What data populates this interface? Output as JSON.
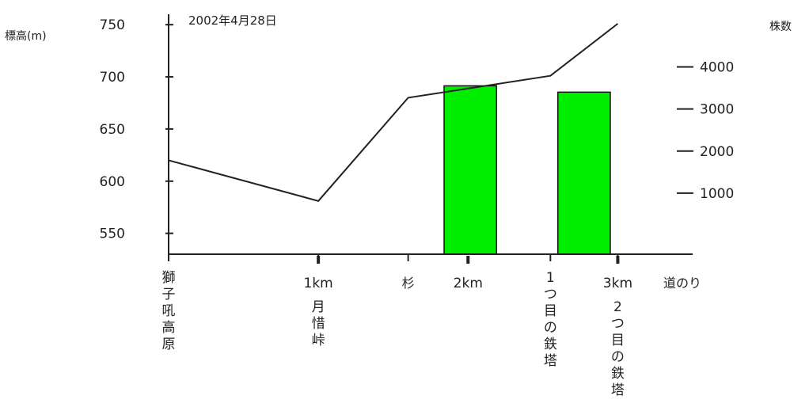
{
  "chart_data": {
    "type": "bar+line",
    "date_label": "2002年4月28日",
    "left_axis": {
      "label": "標高(m)",
      "ylim": [
        530,
        760
      ],
      "ticks": [
        "550",
        "600",
        "650",
        "700",
        "750"
      ]
    },
    "right_axis": {
      "label": "株数",
      "ylim": [
        -450,
        5250
      ],
      "ticks": [
        "1000",
        "2000",
        "3000",
        "4000"
      ]
    },
    "x_axis": {
      "label": "道のり",
      "range": [
        0,
        3.5
      ],
      "distance_ticks": [
        {
          "x": 1,
          "label": "1km"
        },
        {
          "x": 2,
          "label": "2km"
        },
        {
          "x": 3,
          "label": "3km"
        }
      ],
      "landmarks": [
        {
          "x": 0,
          "label": "獅子吼高原",
          "vertical": true
        },
        {
          "x": 1,
          "label": "月惜峠",
          "vertical": true
        },
        {
          "x": 1.6,
          "label": "杉",
          "vertical": false
        },
        {
          "x": 2.55,
          "label": "1つ目の鉄塔",
          "vertical": true
        },
        {
          "x": 3,
          "label": "2つ目の鉄塔",
          "vertical": true
        }
      ]
    },
    "series": [
      {
        "type": "line",
        "axis": "left",
        "x": [
          0,
          1,
          1.6,
          2.55,
          3
        ],
        "y": [
          620,
          581,
          680,
          701,
          751
        ]
      },
      {
        "type": "bar",
        "axis": "right",
        "color": "#00ee00",
        "bars": [
          {
            "x_start": 1.84,
            "x_end": 2.19,
            "value": 3550
          },
          {
            "x_start": 2.6,
            "x_end": 2.95,
            "value": 3400
          }
        ]
      }
    ]
  }
}
